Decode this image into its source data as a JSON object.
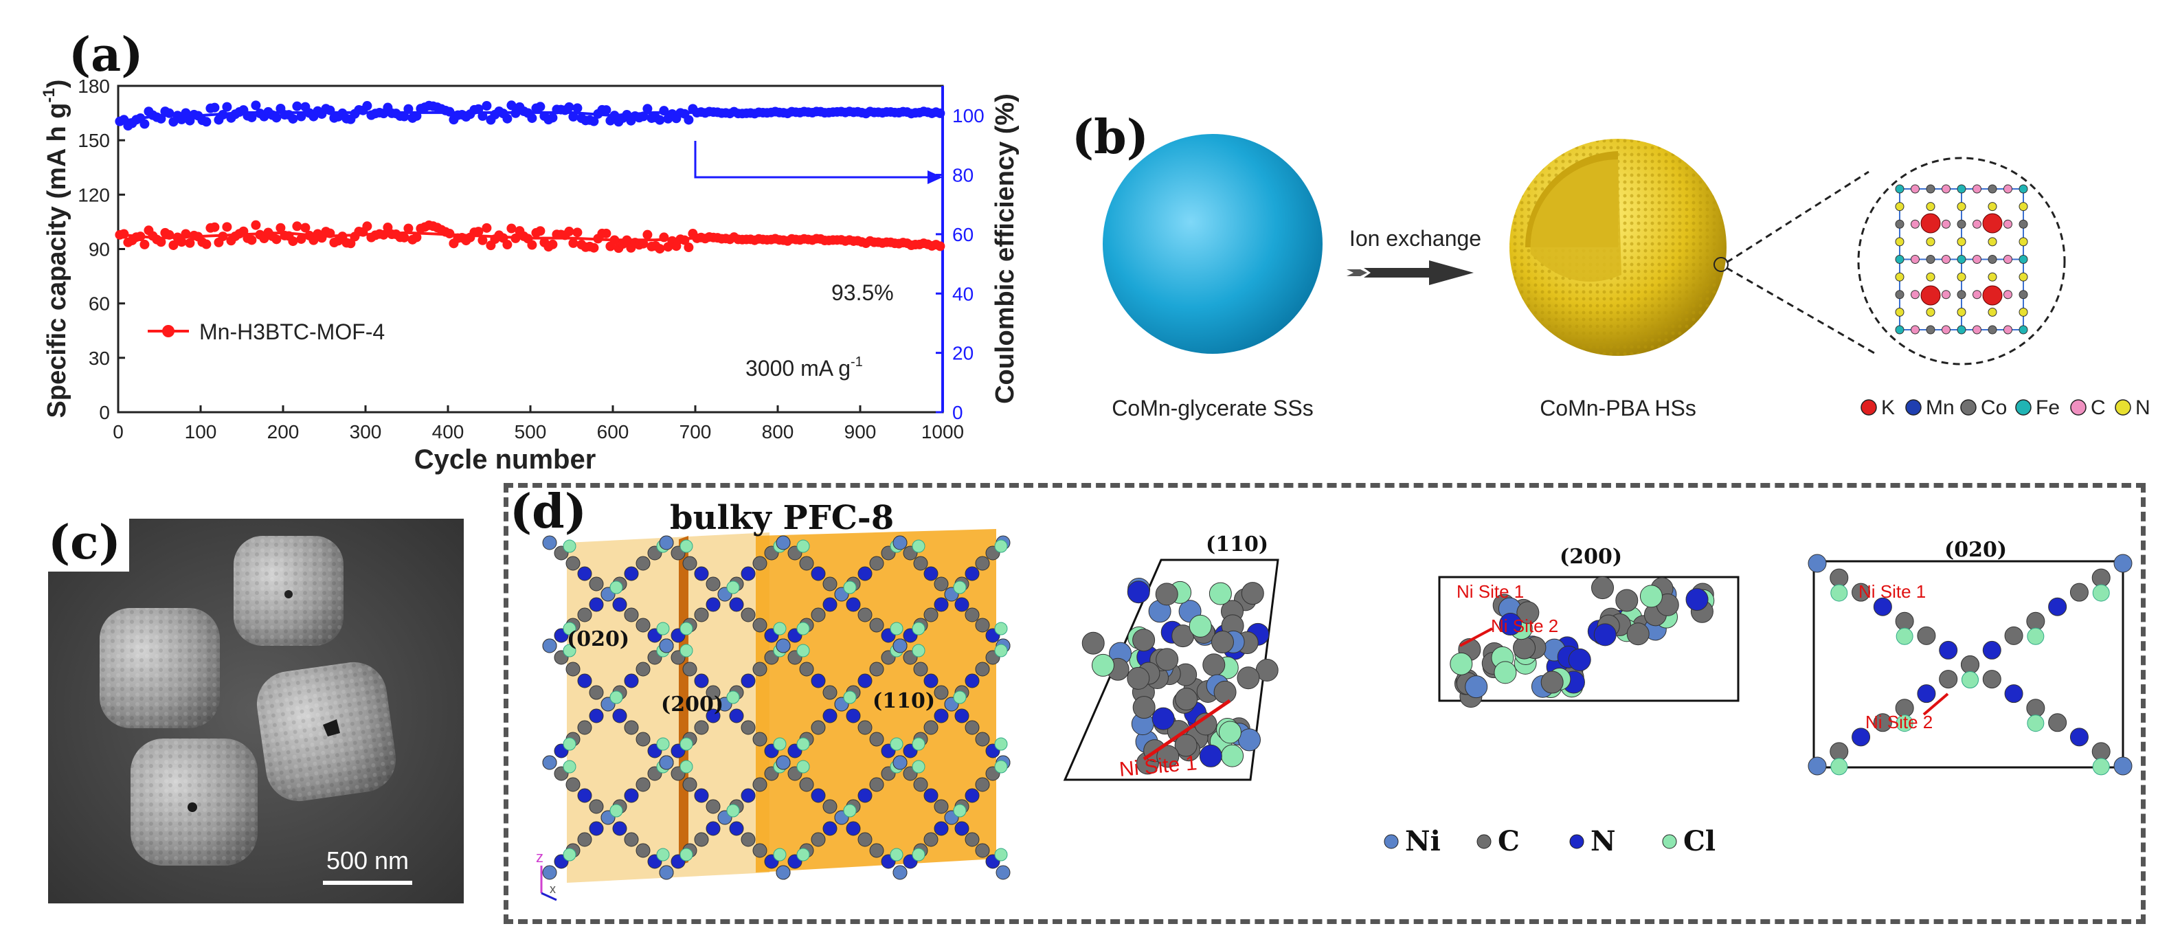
{
  "panels": {
    "a": "(a)",
    "b": "(b)",
    "c": "(c)",
    "d": "(d)"
  },
  "chart_data": {
    "type": "scatter",
    "xlabel": "Cycle number",
    "ylabel_left": "Specific capacity (mA h g",
    "ylabel_left_sup": "-1",
    "ylabel_left_end": ")",
    "ylabel_right": "Coulombic efficiency (%)",
    "xlim": [
      0,
      1000
    ],
    "ylim_left": [
      0,
      180
    ],
    "ylim_right": [
      0,
      110
    ],
    "x_ticks": [
      0,
      100,
      200,
      300,
      400,
      500,
      600,
      700,
      800,
      900,
      1000
    ],
    "y_left_ticks": [
      0,
      30,
      60,
      90,
      120,
      150,
      180
    ],
    "y_right_ticks": [
      0,
      20,
      40,
      60,
      80,
      100
    ],
    "series": [
      {
        "name": "Mn-H3BTC-MOF-4",
        "axis": "left",
        "color": "#ff1a1a",
        "x": [
          0,
          50,
          100,
          150,
          200,
          250,
          300,
          350,
          400,
          450,
          500,
          550,
          600,
          650,
          700,
          750,
          800,
          850,
          900,
          950,
          1000
        ],
        "values": [
          98,
          96,
          97,
          98,
          99,
          97,
          98,
          99,
          98,
          97,
          96,
          96,
          95,
          95,
          96,
          96,
          95,
          95,
          94,
          93,
          92
        ]
      },
      {
        "name": "Coulombic efficiency",
        "axis": "right",
        "color": "#1a1aff",
        "x": [
          0,
          50,
          100,
          150,
          200,
          250,
          300,
          350,
          400,
          450,
          500,
          550,
          600,
          650,
          700,
          750,
          800,
          850,
          900,
          950,
          1000
        ],
        "values": [
          98,
          100,
          100,
          101,
          101,
          101,
          101,
          101,
          101,
          101,
          101,
          101,
          100,
          101,
          101,
          101,
          101,
          101,
          101,
          101,
          101
        ]
      }
    ],
    "annotations": {
      "retention": "93.5%",
      "current": "3000 mA g",
      "current_sup": "-1",
      "legend": "Mn-H3BTC-MOF-4"
    }
  },
  "panel_b": {
    "arrow_label": "Ion exchange",
    "left_caption": "CoMn-glycerate SSs",
    "right_caption": "CoMn-PBA HSs",
    "legend": [
      {
        "label": "K",
        "color": "#e02020"
      },
      {
        "label": "Mn",
        "color": "#1f3fb0"
      },
      {
        "label": "Co",
        "color": "#707070"
      },
      {
        "label": "Fe",
        "color": "#20b4b4"
      },
      {
        "label": "C",
        "color": "#f090c0"
      },
      {
        "label": "N",
        "color": "#e8e030"
      }
    ]
  },
  "panel_c": {
    "scale_bar": "500 nm"
  },
  "panel_d": {
    "title": "bulky PFC-8",
    "planes": [
      "(020)",
      "(200)",
      "(110)"
    ],
    "views": [
      {
        "plane": "(110)",
        "sites": [
          "Ni Site 1"
        ]
      },
      {
        "plane": "(200)",
        "sites": [
          "Ni Site 1",
          "Ni Site 2"
        ]
      },
      {
        "plane": "(020)",
        "sites": [
          "Ni Site 1",
          "Ni Site 2"
        ]
      }
    ],
    "legend": [
      {
        "label": "Ni",
        "color": "#5a82c8"
      },
      {
        "label": "C",
        "color": "#6e6e6e"
      },
      {
        "label": "N",
        "color": "#1c28c8"
      },
      {
        "label": "Cl",
        "color": "#8ee6b0"
      }
    ],
    "axis_z": "z",
    "axis_x": "x"
  }
}
